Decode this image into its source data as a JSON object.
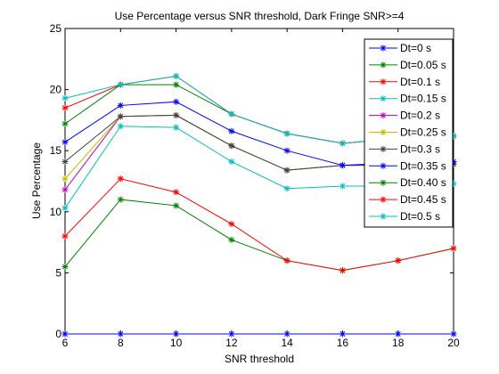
{
  "chart_data": {
    "type": "line",
    "title": "Use Percentage versus SNR threshold, Dark Fringe SNR>=4",
    "xlabel": "SNR threshold",
    "ylabel": "Use Percentage",
    "xlim": [
      6,
      20
    ],
    "ylim": [
      0,
      25
    ],
    "xticks": [
      6,
      8,
      10,
      12,
      14,
      16,
      18,
      20
    ],
    "yticks": [
      0,
      5,
      10,
      15,
      20,
      25
    ],
    "grid": false,
    "legend_position": "top-right",
    "x": [
      6,
      8,
      10,
      12,
      14,
      16,
      18,
      20
    ],
    "series": [
      {
        "name": "Dt=0 s",
        "color": "#0000ff",
        "values": [
          0,
          0,
          0,
          0,
          0,
          0,
          0,
          0
        ]
      },
      {
        "name": "Dt=0.05 s",
        "color": "#008000",
        "values": [
          5.5,
          11.0,
          10.5,
          7.7,
          6.0,
          5.2,
          6.0,
          7.0
        ]
      },
      {
        "name": "Dt=0.1 s",
        "color": "#ff0000",
        "values": [
          8.0,
          12.7,
          11.6,
          9.0,
          6.0,
          5.2,
          6.0,
          7.0
        ]
      },
      {
        "name": "Dt=0.15 s",
        "color": "#00bfbf",
        "values": [
          10.3,
          17.0,
          16.9,
          14.1,
          11.9,
          12.1,
          12.1,
          12.3
        ]
      },
      {
        "name": "Dt=0.2 s",
        "color": "#bf00bf",
        "values": [
          11.8,
          17.8,
          17.9,
          15.4,
          13.4,
          13.8,
          13.8,
          13.9
        ]
      },
      {
        "name": "Dt=0.25 s",
        "color": "#bfbf00",
        "values": [
          12.7,
          17.8,
          17.9,
          15.4,
          13.4,
          13.8,
          13.8,
          13.9
        ]
      },
      {
        "name": "Dt=0.3 s",
        "color": "#404040",
        "values": [
          14.1,
          17.8,
          17.9,
          15.4,
          13.4,
          13.8,
          13.8,
          13.9
        ]
      },
      {
        "name": "Dt=0.35 s",
        "color": "#0000ff",
        "values": [
          15.7,
          18.7,
          19.0,
          16.6,
          15.0,
          13.8,
          14.0,
          14.1
        ]
      },
      {
        "name": "Dt=0.40 s",
        "color": "#008000",
        "values": [
          17.2,
          20.4,
          20.4,
          18.0,
          16.4,
          15.6,
          16.0,
          16.2
        ]
      },
      {
        "name": "Dt=0.45 s",
        "color": "#ff0000",
        "values": [
          18.5,
          20.4,
          21.1,
          18.0,
          16.4,
          15.6,
          16.0,
          16.2
        ]
      },
      {
        "name": "Dt=0.5 s",
        "color": "#00bfbf",
        "values": [
          19.3,
          20.4,
          21.1,
          18.0,
          16.4,
          15.6,
          16.0,
          16.2
        ]
      }
    ]
  }
}
